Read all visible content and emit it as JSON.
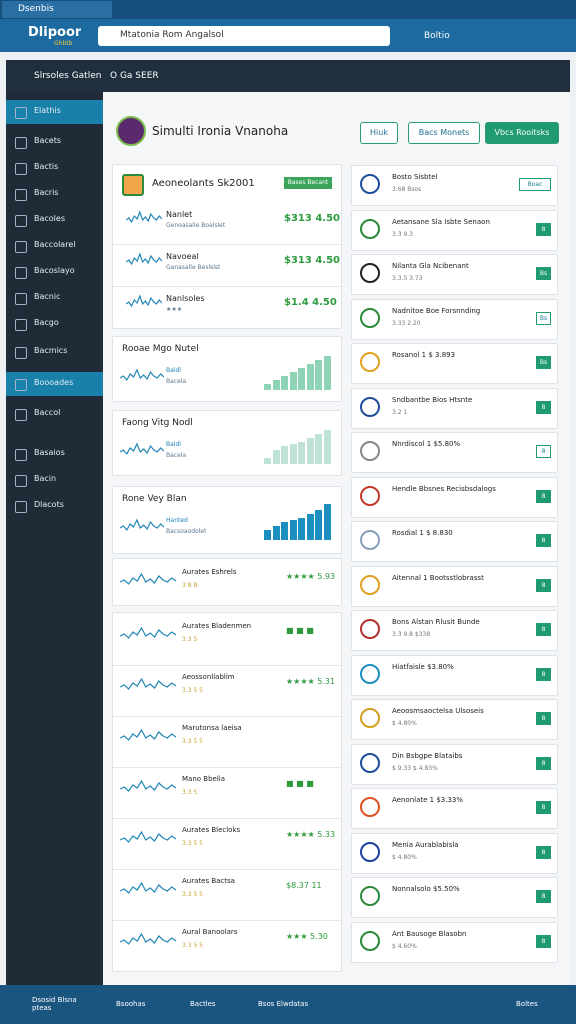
{
  "browser": {
    "tab": "Dsenbis",
    "logo": "Dlipoor",
    "logo_sub": "Ghbtb",
    "search": "Mtatonia Rom Angalsol",
    "user": "Boltio"
  },
  "app_header": {
    "title": "Slrsoles Gatlen",
    "crumb": "O Ga SEER"
  },
  "sidebar": [
    "Elathis",
    "Bacets",
    "Bactis",
    "Bacris",
    "Bacoles",
    "Baccolarel",
    "Bacoslayo",
    "Bacnic",
    "Bacgo",
    "Bacmics",
    "Boooades",
    "Baccol",
    "Basaios",
    "Bacin",
    "Dlacots"
  ],
  "page": {
    "title": "Simulti Ironia Vnanoha",
    "actions": [
      "Hiuk",
      "Bacs Monets",
      "Vbcs Rooitsks"
    ]
  },
  "left": {
    "header": {
      "title": "Aeoneolants Sk2001",
      "button": "Bases Becant"
    },
    "rows": [
      {
        "name": "Nanlet",
        "sub": "Genoasalle Boalslet",
        "value": "$313 4.50"
      },
      {
        "name": "Navoeal",
        "sub": "Ganasalle Beslslst",
        "value": "$313 4.50"
      },
      {
        "name": "Nanlsoles",
        "sub": "★★★",
        "value": "$1.4 4.50"
      }
    ],
    "bars": [
      {
        "title": "Rooae Mgo Nutel",
        "line1": "Baldl",
        "line2": "Bacela"
      },
      {
        "title": "Faong Vitg Nodl",
        "line1": "Baldl",
        "line2": "Bacela"
      },
      {
        "title": "Rone Vey Blan",
        "line1": "Hanted",
        "line2": "Bacsoaodolet"
      }
    ],
    "list": [
      {
        "name": "Aurates Eshrels",
        "sub": "3.8 B",
        "value": "★★★★ 5.93"
      },
      {
        "name": "Aurates Bladenmen",
        "sub": "3.3 5",
        "value": "■ ■ ■"
      },
      {
        "name": "Aeossonliablim",
        "sub": "3.3 5 5",
        "value": "★★★★ 5.31"
      },
      {
        "name": "Marutonsa laeisa",
        "sub": "3.3 5 5",
        "value": ""
      },
      {
        "name": "Mano Bbelia",
        "sub": "3.3 5",
        "value": "■ ■ ■"
      },
      {
        "name": "Aurates Blecloks",
        "sub": "3.3 5 5",
        "value": "★★★★ 5.33"
      },
      {
        "name": "Aurates Bactsa",
        "sub": "3.3 5 5",
        "value": "$8.37 11"
      },
      {
        "name": "Aural Banoolars",
        "sub": "3.3 5 5",
        "value": "★★★ 5.30"
      }
    ]
  },
  "right": [
    {
      "title": "Bosto Sisbtel",
      "sub": "3.68 Bsos",
      "badge": "Boac"
    },
    {
      "title": "Aetansane Sla Isbte Senaon",
      "sub": "3.3 9.3",
      "badge": "8"
    },
    {
      "title": "Nilanta Gla Ncibenant",
      "sub": "3.3.5 3.73",
      "badge": "Bs"
    },
    {
      "title": "Nadnitoe Boe Forsnnding",
      "sub": "3.33 2.20",
      "badge": "Bs"
    },
    {
      "title": "Rosanol 1 $ 3.893",
      "sub": "",
      "badge": "Bs"
    },
    {
      "title": "Sndbantbe Bios Htsnte",
      "sub": "3.2 1",
      "badge": "8"
    },
    {
      "title": "Nnrdiscol 1 $5.80%",
      "sub": "",
      "badge": "8"
    },
    {
      "title": "Hendle Bbsnes Recisbsdalogs",
      "sub": "",
      "badge": "8"
    },
    {
      "title": "Rosdial 1 $ 8.830",
      "sub": "",
      "badge": "8"
    },
    {
      "title": "Aitennal 1 Bootsstlobrasst",
      "sub": "",
      "badge": "8"
    },
    {
      "title": "Bons Alstan Rlusit Bunde",
      "sub": "3.3 9.8 $338",
      "badge": "8"
    },
    {
      "title": "Hiatfaisle $3.80%",
      "sub": "",
      "badge": "8"
    },
    {
      "title": "Aeoosmsaoctelsa Ulsoseis",
      "sub": "$ 4.80%",
      "badge": "8"
    },
    {
      "title": "Din Bsbgpe Blataibs",
      "sub": "$ 9.33 $ 4.83%",
      "badge": "8"
    },
    {
      "title": "Aenonlate 1 $3.33%",
      "sub": "",
      "badge": "8"
    },
    {
      "title": "Menia Aurablabisla",
      "sub": "$ 4.80%",
      "badge": "8"
    },
    {
      "title": "Nonnalsolo $5.50%",
      "sub": "",
      "badge": "8"
    },
    {
      "title": "Ant Bausoge Blasobn",
      "sub": "$ 4.60%",
      "badge": "8"
    }
  ],
  "taskbar": [
    "Dsosid Blsna pteas",
    "Bsoohas",
    "Bactles",
    "Bsos Elwdatas",
    "Boltes"
  ]
}
